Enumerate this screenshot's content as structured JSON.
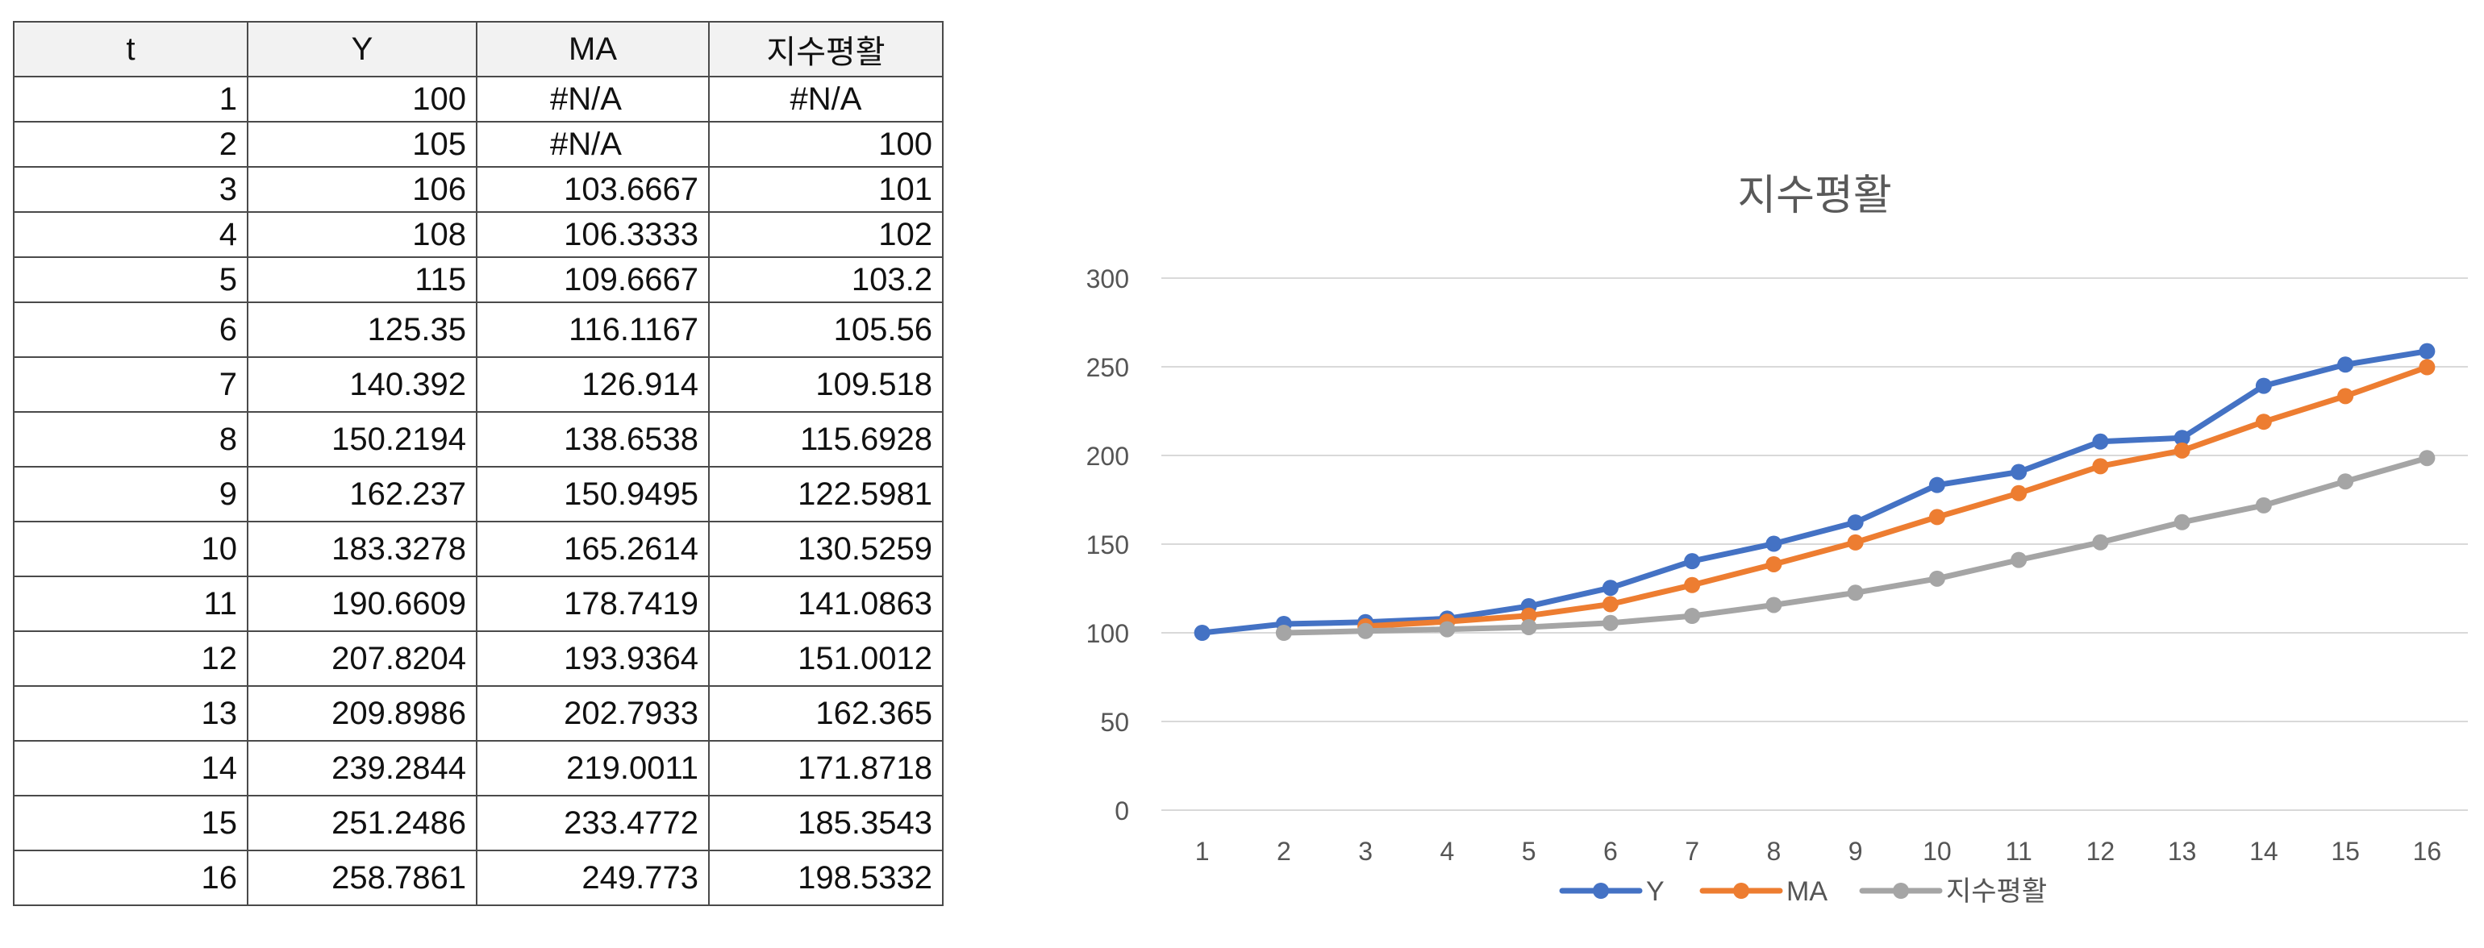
{
  "table": {
    "headers": [
      "t",
      "Y",
      "MA",
      "지수평활"
    ],
    "rows": [
      [
        "1",
        "100",
        "#N/A",
        "#N/A"
      ],
      [
        "2",
        "105",
        "#N/A",
        "100"
      ],
      [
        "3",
        "106",
        "103.6667",
        "101"
      ],
      [
        "4",
        "108",
        "106.3333",
        "102"
      ],
      [
        "5",
        "115",
        "109.6667",
        "103.2"
      ],
      [
        "6",
        "125.35",
        "116.1167",
        "105.56"
      ],
      [
        "7",
        "140.392",
        "126.914",
        "109.518"
      ],
      [
        "8",
        "150.2194",
        "138.6538",
        "115.6928"
      ],
      [
        "9",
        "162.237",
        "150.9495",
        "122.5981"
      ],
      [
        "10",
        "183.3278",
        "165.2614",
        "130.5259"
      ],
      [
        "11",
        "190.6609",
        "178.7419",
        "141.0863"
      ],
      [
        "12",
        "207.8204",
        "193.9364",
        "151.0012"
      ],
      [
        "13",
        "209.8986",
        "202.7933",
        "162.365"
      ],
      [
        "14",
        "239.2844",
        "219.0011",
        "171.8718"
      ],
      [
        "15",
        "251.2486",
        "233.4772",
        "185.3543"
      ],
      [
        "16",
        "258.7861",
        "249.773",
        "198.5332"
      ]
    ]
  },
  "chart_data": {
    "type": "line",
    "title": "지수평활",
    "xlabel": "",
    "ylabel": "",
    "categories": [
      "1",
      "2",
      "3",
      "4",
      "5",
      "6",
      "7",
      "8",
      "9",
      "10",
      "11",
      "12",
      "13",
      "14",
      "15",
      "16"
    ],
    "ylim": [
      0,
      300
    ],
    "yticks": [
      0,
      50,
      100,
      150,
      200,
      250,
      300
    ],
    "grid": true,
    "legend_position": "bottom",
    "series": [
      {
        "name": "Y",
        "color": "#4472C4",
        "values": [
          100,
          105,
          106,
          108,
          115,
          125.35,
          140.392,
          150.2194,
          162.237,
          183.3278,
          190.6609,
          207.8204,
          209.8986,
          239.2844,
          251.2486,
          258.7861
        ]
      },
      {
        "name": "MA",
        "color": "#ED7D31",
        "values": [
          null,
          null,
          103.6667,
          106.3333,
          109.6667,
          116.1167,
          126.914,
          138.6538,
          150.9495,
          165.2614,
          178.7419,
          193.9364,
          202.7933,
          219.0011,
          233.4772,
          249.773
        ]
      },
      {
        "name": "지수평활",
        "color": "#A5A5A5",
        "values": [
          null,
          100,
          101,
          102,
          103.2,
          105.56,
          109.518,
          115.6928,
          122.5981,
          130.5259,
          141.0863,
          151.0012,
          162.365,
          171.8718,
          185.3543,
          198.5332
        ]
      }
    ]
  }
}
